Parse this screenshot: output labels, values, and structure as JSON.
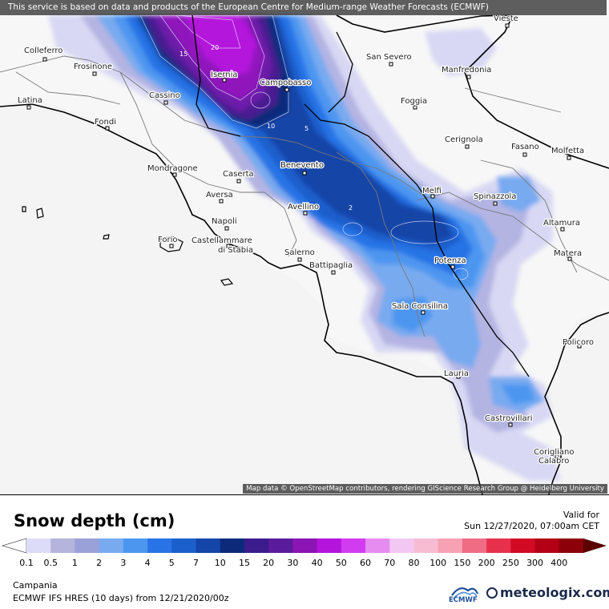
{
  "attribution_top": "This service is based on data and products of the European Centre for Medium-range Weather Forecasts (ECMWF)",
  "attribution_bottom": "Map data © OpenStreetMap contributors, rendering GIScience Research Group @ Heidelberg University",
  "legend": {
    "title": "Snow depth (cm)",
    "valid_label": "Valid for",
    "valid_time": "Sun 12/27/2020, 07:00am CET",
    "ticks": [
      "0.1",
      "0.5",
      "1",
      "2",
      "3",
      "4",
      "5",
      "7",
      "10",
      "15",
      "20",
      "30",
      "40",
      "50",
      "60",
      "70",
      "80",
      "100",
      "150",
      "200",
      "250",
      "300",
      "400"
    ],
    "colors": [
      "#dcdcf8",
      "#b4b4dc",
      "#9aa0d8",
      "#78aaf0",
      "#4d96f0",
      "#2873e6",
      "#1a5fcc",
      "#1445a8",
      "#0d2a7a",
      "#3c1c8c",
      "#5a1c9c",
      "#8c14b4",
      "#b414dc",
      "#d23cf0",
      "#e68cf0",
      "#f2c8f2",
      "#f8bcd2",
      "#f8a0b4",
      "#f06c84",
      "#e6304c",
      "#d20a23",
      "#b40014",
      "#8c000a",
      "#5a0000"
    ]
  },
  "region": "Campania",
  "model_info": "ECMWF IFS HRES (10 days) from 12/21/2020/00z",
  "logos": {
    "ecmwf": "ECMWF",
    "meteologix": "meteologix.com"
  },
  "cities": [
    {
      "name": "Vieste"
    },
    {
      "name": "Colleferro"
    },
    {
      "name": "San Severo"
    },
    {
      "name": "Frosinone"
    },
    {
      "name": "Manfredonia"
    },
    {
      "name": "Isernia"
    },
    {
      "name": "Campobasso"
    },
    {
      "name": "Latina"
    },
    {
      "name": "Cassino"
    },
    {
      "name": "Foggia"
    },
    {
      "name": "Fondi"
    },
    {
      "name": "Cerignola"
    },
    {
      "name": "Fasano"
    },
    {
      "name": "Molfetta"
    },
    {
      "name": "Mondragone"
    },
    {
      "name": "Caserta"
    },
    {
      "name": "Benevento"
    },
    {
      "name": "Melfi"
    },
    {
      "name": "Spinazzola"
    },
    {
      "name": "Aversa"
    },
    {
      "name": "Avellino"
    },
    {
      "name": "Napoli"
    },
    {
      "name": "Altamura"
    },
    {
      "name": "Forio"
    },
    {
      "name": "Castellammare"
    },
    {
      "name": "di Stabia"
    },
    {
      "name": "Salerno"
    },
    {
      "name": "Battipaglia"
    },
    {
      "name": "Potenza"
    },
    {
      "name": "Matera"
    },
    {
      "name": "Sala Consilina"
    },
    {
      "name": "Policoro"
    },
    {
      "name": "Lauria"
    },
    {
      "name": "Castrovillari"
    },
    {
      "name": "Corigliano"
    },
    {
      "name": "Calabro"
    }
  ],
  "contour_labels": [
    "10",
    "5",
    "2",
    "15",
    "20"
  ]
}
